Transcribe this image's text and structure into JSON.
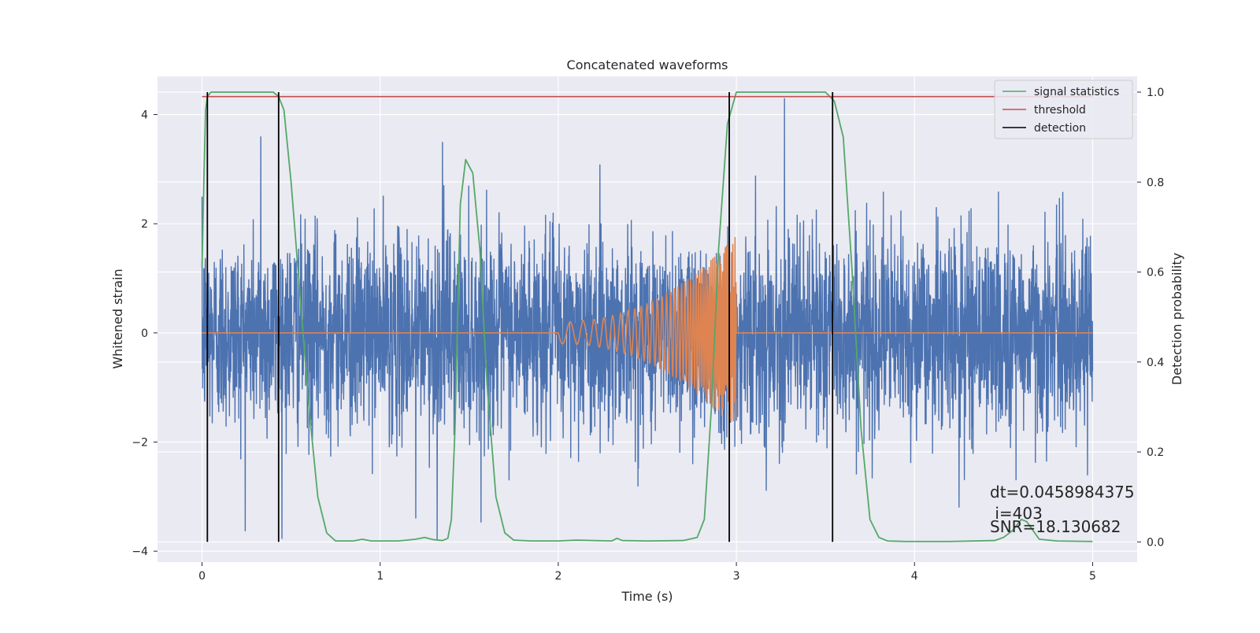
{
  "chart_data": {
    "type": "line",
    "title": "Concatenated waveforms",
    "xlabel": "Time (s)",
    "ylabel": "Whitened strain",
    "y2label": "Detection probability",
    "xlim": [
      -0.25,
      5.25
    ],
    "ylim": [
      -4.2,
      4.7
    ],
    "y2lim": [
      -0.045,
      1.035
    ],
    "x_ticks": [
      0,
      1,
      2,
      3,
      4,
      5
    ],
    "x_tick_labels": [
      "0",
      "1",
      "2",
      "3",
      "4",
      "5"
    ],
    "y_ticks": [
      -4,
      -2,
      0,
      2,
      4
    ],
    "y_tick_labels": [
      "−4",
      "−2",
      "0",
      "2",
      "4"
    ],
    "y2_ticks": [
      0.0,
      0.2,
      0.4,
      0.6,
      0.8,
      1.0
    ],
    "y2_tick_labels": [
      "0.0",
      "0.2",
      "0.4",
      "0.6",
      "0.8",
      "1.0"
    ],
    "grid": true,
    "legend_position": "top-right",
    "background_color": "#eaeaf2",
    "series": [
      {
        "name": "",
        "axis": "left",
        "color": "#4c72b0",
        "description_points": {
          "x": [
            0,
            5
          ],
          "noise_sigma": 0.9,
          "notable_spikes": [
            [
              0.33,
              3.6
            ],
            [
              1.2,
              -3.4
            ],
            [
              1.35,
              3.5
            ],
            [
              1.32,
              -3.8
            ],
            [
              3.27,
              4.3
            ],
            [
              4.25,
              -3.2
            ],
            [
              4.57,
              -2.7
            ]
          ]
        }
      },
      {
        "name": "",
        "axis": "left",
        "color": "#dd8452",
        "chirp": {
          "x_start": 2.0,
          "x_end": 3.0,
          "amplitude_start": 0.2,
          "amplitude_end": 1.8
        }
      },
      {
        "name": "signal statistics",
        "axis": "right",
        "color": "#55a868",
        "x": [
          0.0,
          0.01,
          0.02,
          0.03,
          0.05,
          0.1,
          0.2,
          0.3,
          0.4,
          0.43,
          0.46,
          0.5,
          0.55,
          0.6,
          0.65,
          0.7,
          0.75,
          0.85,
          0.9,
          0.95,
          1.1,
          1.2,
          1.25,
          1.3,
          1.35,
          1.38,
          1.4,
          1.42,
          1.45,
          1.48,
          1.52,
          1.56,
          1.6,
          1.65,
          1.7,
          1.75,
          1.85,
          2.0,
          2.1,
          2.3,
          2.33,
          2.36,
          2.5,
          2.7,
          2.78,
          2.82,
          2.86,
          2.9,
          2.95,
          3.0,
          3.2,
          3.5,
          3.55,
          3.6,
          3.65,
          3.7,
          3.75,
          3.8,
          3.85,
          3.95,
          4.2,
          4.45,
          4.5,
          4.55,
          4.6,
          4.63,
          4.7,
          4.8,
          5.0
        ],
        "y": [
          0.61,
          0.8,
          0.96,
          0.99,
          1.0,
          1.0,
          1.0,
          1.0,
          1.0,
          0.99,
          0.96,
          0.8,
          0.55,
          0.3,
          0.1,
          0.02,
          0.002,
          0.002,
          0.006,
          0.002,
          0.002,
          0.006,
          0.01,
          0.005,
          0.003,
          0.008,
          0.05,
          0.25,
          0.75,
          0.85,
          0.82,
          0.65,
          0.35,
          0.1,
          0.02,
          0.004,
          0.002,
          0.002,
          0.004,
          0.002,
          0.008,
          0.003,
          0.002,
          0.003,
          0.01,
          0.05,
          0.3,
          0.65,
          0.93,
          1.0,
          1.0,
          1.0,
          0.98,
          0.9,
          0.6,
          0.25,
          0.05,
          0.01,
          0.002,
          0.001,
          0.001,
          0.003,
          0.01,
          0.025,
          0.05,
          0.045,
          0.006,
          0.002,
          0.001
        ]
      },
      {
        "name": "threshold",
        "axis": "right",
        "color": "#c44e52",
        "x": [
          0,
          5
        ],
        "y": [
          0.99,
          0.99
        ]
      },
      {
        "name": "detection",
        "axis": "right",
        "color": "#000000",
        "type": "vlines",
        "x": [
          0.03,
          0.43,
          2.96,
          3.54
        ],
        "y_range": [
          0.0,
          1.0
        ]
      }
    ],
    "annotation_lines": [
      "dt=0.0458984375",
      " i=403",
      "SNR=18.130682"
    ],
    "annotation_anchor": {
      "x": 4.5,
      "y": -3.05
    }
  }
}
